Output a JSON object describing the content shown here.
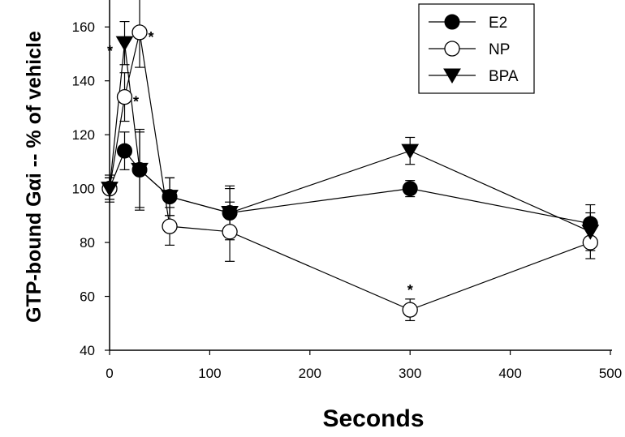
{
  "chart_data": {
    "type": "line",
    "xlabel": "Seconds",
    "ylabel": "GTP-bound Gαi -- % of vehicle",
    "xlim": [
      0,
      500
    ],
    "ylim": [
      40,
      170
    ],
    "xticks": [
      "0",
      "100",
      "200",
      "300",
      "400",
      "500"
    ],
    "yticks": [
      "40",
      "60",
      "80",
      "100",
      "120",
      "140",
      "160"
    ],
    "xtick_values": [
      0,
      100,
      200,
      300,
      400,
      500
    ],
    "ytick_values": [
      40,
      60,
      80,
      100,
      120,
      140,
      160
    ],
    "legend_position": "top-right",
    "grid": false,
    "series": [
      {
        "name": "E2",
        "marker": "filled-circle",
        "color": "#000000",
        "x": [
          0,
          15,
          30,
          60,
          120,
          300,
          480
        ],
        "y": [
          100,
          114,
          107,
          97,
          91,
          100,
          87
        ],
        "err": [
          4,
          7,
          15,
          7,
          10,
          3,
          7
        ],
        "asterisks": []
      },
      {
        "name": "NP",
        "marker": "open-circle",
        "color": "#000000",
        "x": [
          0,
          15,
          30,
          60,
          120,
          300,
          480
        ],
        "y": [
          100,
          134,
          158,
          86,
          84,
          55,
          80
        ],
        "err": [
          4,
          9,
          13,
          7,
          11,
          4,
          6
        ],
        "asterisks": [
          false,
          true,
          true,
          false,
          false,
          true,
          false
        ]
      },
      {
        "name": "BPA",
        "marker": "filled-triangle-down",
        "color": "#000000",
        "x": [
          0,
          15,
          30,
          60,
          120,
          300,
          480
        ],
        "y": [
          100,
          154,
          107,
          97,
          91,
          114,
          84
        ],
        "err": [
          5,
          8,
          14,
          7,
          9,
          5,
          7
        ],
        "asterisks": [
          false,
          true,
          false,
          false,
          false,
          false,
          false
        ]
      }
    ],
    "annotation_symbol": "*"
  }
}
